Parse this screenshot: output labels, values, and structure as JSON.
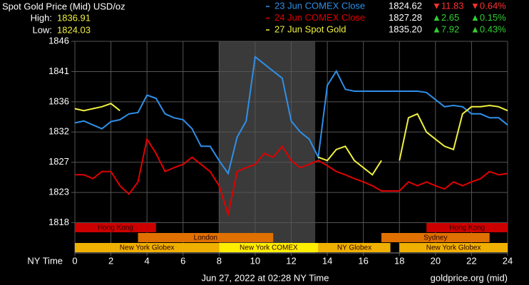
{
  "chart_data": {
    "type": "line",
    "title": "Spot Gold Price (Mid) USD/oz",
    "high_label": "High:",
    "high": "1836.91",
    "low_label": "Low:",
    "low": "1824.03",
    "x_label": "NY Time",
    "timestamp": "Jun 27, 2022 at 02:28 NY Time",
    "source": "goldprice.org (mid)",
    "xlim": [
      0,
      24
    ],
    "xticks": [
      0,
      2,
      4,
      6,
      8,
      10,
      12,
      14,
      16,
      18,
      20,
      22,
      24
    ],
    "ylim": [
      1813.33,
      1846
    ],
    "yticks": [
      1846,
      {
        "value": 1841.33,
        "label": "1841"
      },
      {
        "value": 1836.67,
        "label": "1836"
      },
      1832,
      {
        "value": 1827.33,
        "label": "1827"
      },
      {
        "value": 1822.67,
        "label": "1823"
      },
      1818
    ],
    "grid": true,
    "highlight": [
      8,
      13.33
    ],
    "x": [
      0,
      0.5,
      1,
      1.5,
      2,
      2.5,
      3,
      3.5,
      4,
      4.5,
      5,
      5.5,
      6,
      6.5,
      7,
      7.5,
      8,
      8.5,
      9,
      9.5,
      10,
      10.5,
      11,
      11.5,
      12,
      12.5,
      13,
      13.5,
      14,
      14.5,
      15,
      15.5,
      16,
      16.5,
      17,
      17.5,
      18,
      18.5,
      19,
      19.5,
      20,
      20.5,
      21,
      21.5,
      22,
      22.5,
      23,
      23.5,
      24
    ],
    "series": [
      {
        "name": "23 Jun COMEX Close",
        "color": "#2f8fe8",
        "price": "1824.62",
        "change": "▼11.83",
        "change_pct": "▼0.64%",
        "direction": "down",
        "values": [
          1833.4,
          1833.7,
          1833.1,
          1832.5,
          1833.6,
          1833.9,
          1834.8,
          1835.0,
          1837.7,
          1837.2,
          1834.8,
          1834.2,
          1833.9,
          1832.5,
          1829.8,
          1829.8,
          1827.6,
          1825.6,
          1831.2,
          1833.7,
          1843.6,
          1842.5,
          1841.4,
          1840.3,
          1833.7,
          1832.0,
          1830.9,
          1828.1,
          1839.2,
          1841.4,
          1838.6,
          1838.3,
          1838.3,
          1838.3,
          1838.3,
          1838.3,
          1838.3,
          1838.3,
          1838.3,
          1838.1,
          1837.0,
          1835.9,
          1836.1,
          1835.9,
          1834.8,
          1834.8,
          1834.2,
          1834.2,
          1833.1
        ]
      },
      {
        "name": "24 Jun COMEX Close",
        "color": "#e00000",
        "price": "1827.28",
        "change": "▲2.65",
        "change_pct": "▲0.15%",
        "direction": "up",
        "values": [
          1825.4,
          1825.4,
          1824.8,
          1825.9,
          1825.9,
          1823.7,
          1822.4,
          1824.3,
          1830.9,
          1828.7,
          1825.9,
          1826.5,
          1827.0,
          1828.1,
          1827.0,
          1825.9,
          1823.7,
          1819.3,
          1825.9,
          1826.5,
          1827.0,
          1828.7,
          1828.1,
          1829.8,
          1827.6,
          1826.5,
          1827.0,
          1827.6,
          1826.8,
          1825.9,
          1825.4,
          1824.8,
          1824.3,
          1823.7,
          1822.9,
          1822.9,
          1822.9,
          1824.3,
          1823.7,
          1824.3,
          1823.7,
          1823.2,
          1824.3,
          1823.7,
          1824.3,
          1824.8,
          1825.9,
          1825.4,
          1825.6
        ]
      },
      {
        "name": "27 Jun Spot Gold",
        "color": "#f0f040",
        "price": "1835.20",
        "change": "▲7.92",
        "change_pct": "▲0.43%",
        "direction": "up",
        "values": [
          1835.6,
          1835.3,
          1835.6,
          1835.9,
          1836.4,
          1835.3,
          null,
          null,
          null,
          null,
          null,
          null,
          null,
          null,
          null,
          null,
          null,
          null,
          null,
          null,
          null,
          null,
          null,
          null,
          null,
          null,
          null,
          1828.1,
          1827.6,
          1829.3,
          1829.8,
          1827.6,
          1826.5,
          1825.4,
          1827.6,
          null,
          1827.6,
          1834.2,
          1834.8,
          1832.0,
          1830.9,
          1829.8,
          1829.3,
          1834.8,
          1835.9,
          1835.9,
          1836.1,
          1835.9,
          1835.3
        ]
      }
    ],
    "session_rows": [
      [
        {
          "label": "Hong Kong",
          "start": 0,
          "end": 4.5,
          "color": "#cc0000"
        },
        {
          "label": "Hong Kong",
          "start": 19.5,
          "end": 24,
          "color": "#cc0000"
        }
      ],
      [
        {
          "label": "London",
          "start": 3.5,
          "end": 11,
          "color": "#e07000"
        },
        {
          "label": "Sydney",
          "start": 17,
          "end": 23,
          "color": "#e07000"
        }
      ],
      [
        {
          "label": "New York Globex",
          "start": 0,
          "end": 8,
          "color": "#f0b000"
        },
        {
          "label": "New York COMEX",
          "start": 8,
          "end": 13.5,
          "color": "#ffee00"
        },
        {
          "label": "NY Globex",
          "start": 13.5,
          "end": 17.5,
          "color": "#f0b000"
        },
        {
          "label": "New York Globex",
          "start": 18,
          "end": 24,
          "color": "#f0b000"
        }
      ]
    ]
  }
}
